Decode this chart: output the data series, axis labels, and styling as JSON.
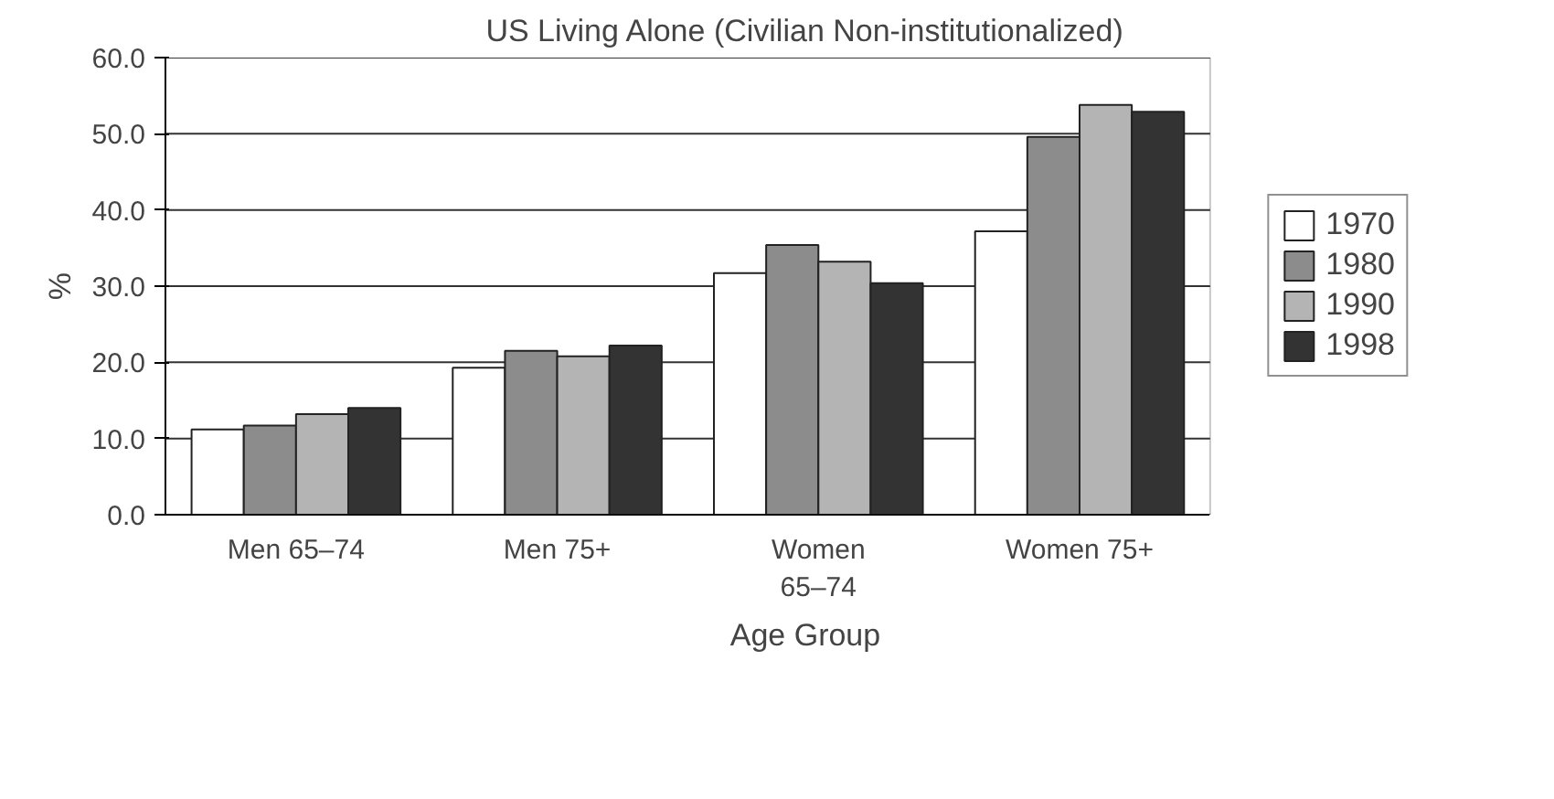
{
  "chart_data": {
    "type": "bar",
    "title": "US Living Alone (Civilian Non-institutionalized)",
    "xlabel": "Age Group",
    "ylabel": "%",
    "categories": [
      "Men 65–74",
      "Men 75+",
      "Women\n65–74",
      "Women 75+"
    ],
    "series": [
      {
        "name": "1970",
        "color": "#ffffff",
        "values": [
          11.2,
          19.3,
          31.7,
          37.2
        ]
      },
      {
        "name": "1980",
        "color": "#8c8c8c",
        "values": [
          11.7,
          21.5,
          35.4,
          49.6
        ]
      },
      {
        "name": "1990",
        "color": "#b4b4b4",
        "values": [
          13.2,
          20.8,
          33.2,
          53.8
        ]
      },
      {
        "name": "1998",
        "color": "#333333",
        "values": [
          14.0,
          22.2,
          30.4,
          52.9
        ]
      }
    ],
    "ylim": [
      0,
      60
    ],
    "yticks": [
      {
        "value": 0,
        "label": "0.0"
      },
      {
        "value": 10,
        "label": "10.0"
      },
      {
        "value": 20,
        "label": "20.0"
      },
      {
        "value": 30,
        "label": "30.0"
      },
      {
        "value": 40,
        "label": "40.0"
      },
      {
        "value": 50,
        "label": "50.0"
      },
      {
        "value": 60,
        "label": "60.0"
      }
    ],
    "grid": "y",
    "legend": "right"
  }
}
